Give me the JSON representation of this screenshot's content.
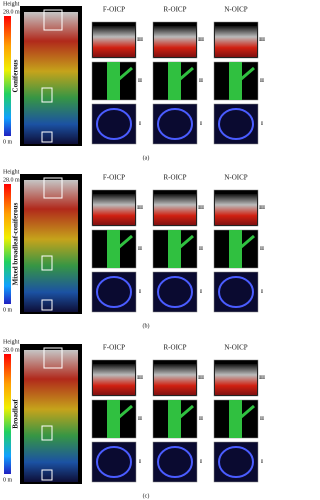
{
  "panels": [
    {
      "height_label": "Height",
      "top_label": "28.0 m",
      "bottom_label": "0 m",
      "forest_type": "Coniferous",
      "methods": [
        "F-OICP",
        "R-OICP",
        "N-OICP"
      ],
      "levels": [
        "III",
        "II",
        "I"
      ],
      "caption": "(a)"
    },
    {
      "height_label": "Height",
      "top_label": "28.0 m",
      "bottom_label": "0 m",
      "forest_type": "Mixed broadleaf-coniferous",
      "methods": [
        "F-OICP",
        "R-OICP",
        "N-OICP"
      ],
      "levels": [
        "III",
        "II",
        "I"
      ],
      "caption": "(b)"
    },
    {
      "height_label": "Height",
      "top_label": "28.0 m",
      "bottom_label": "0 m",
      "forest_type": "Broadleaf",
      "methods": [
        "F-OICP",
        "R-OICP",
        "N-OICP"
      ],
      "levels": [
        "III",
        "II",
        "I"
      ],
      "caption": "(c)"
    }
  ]
}
